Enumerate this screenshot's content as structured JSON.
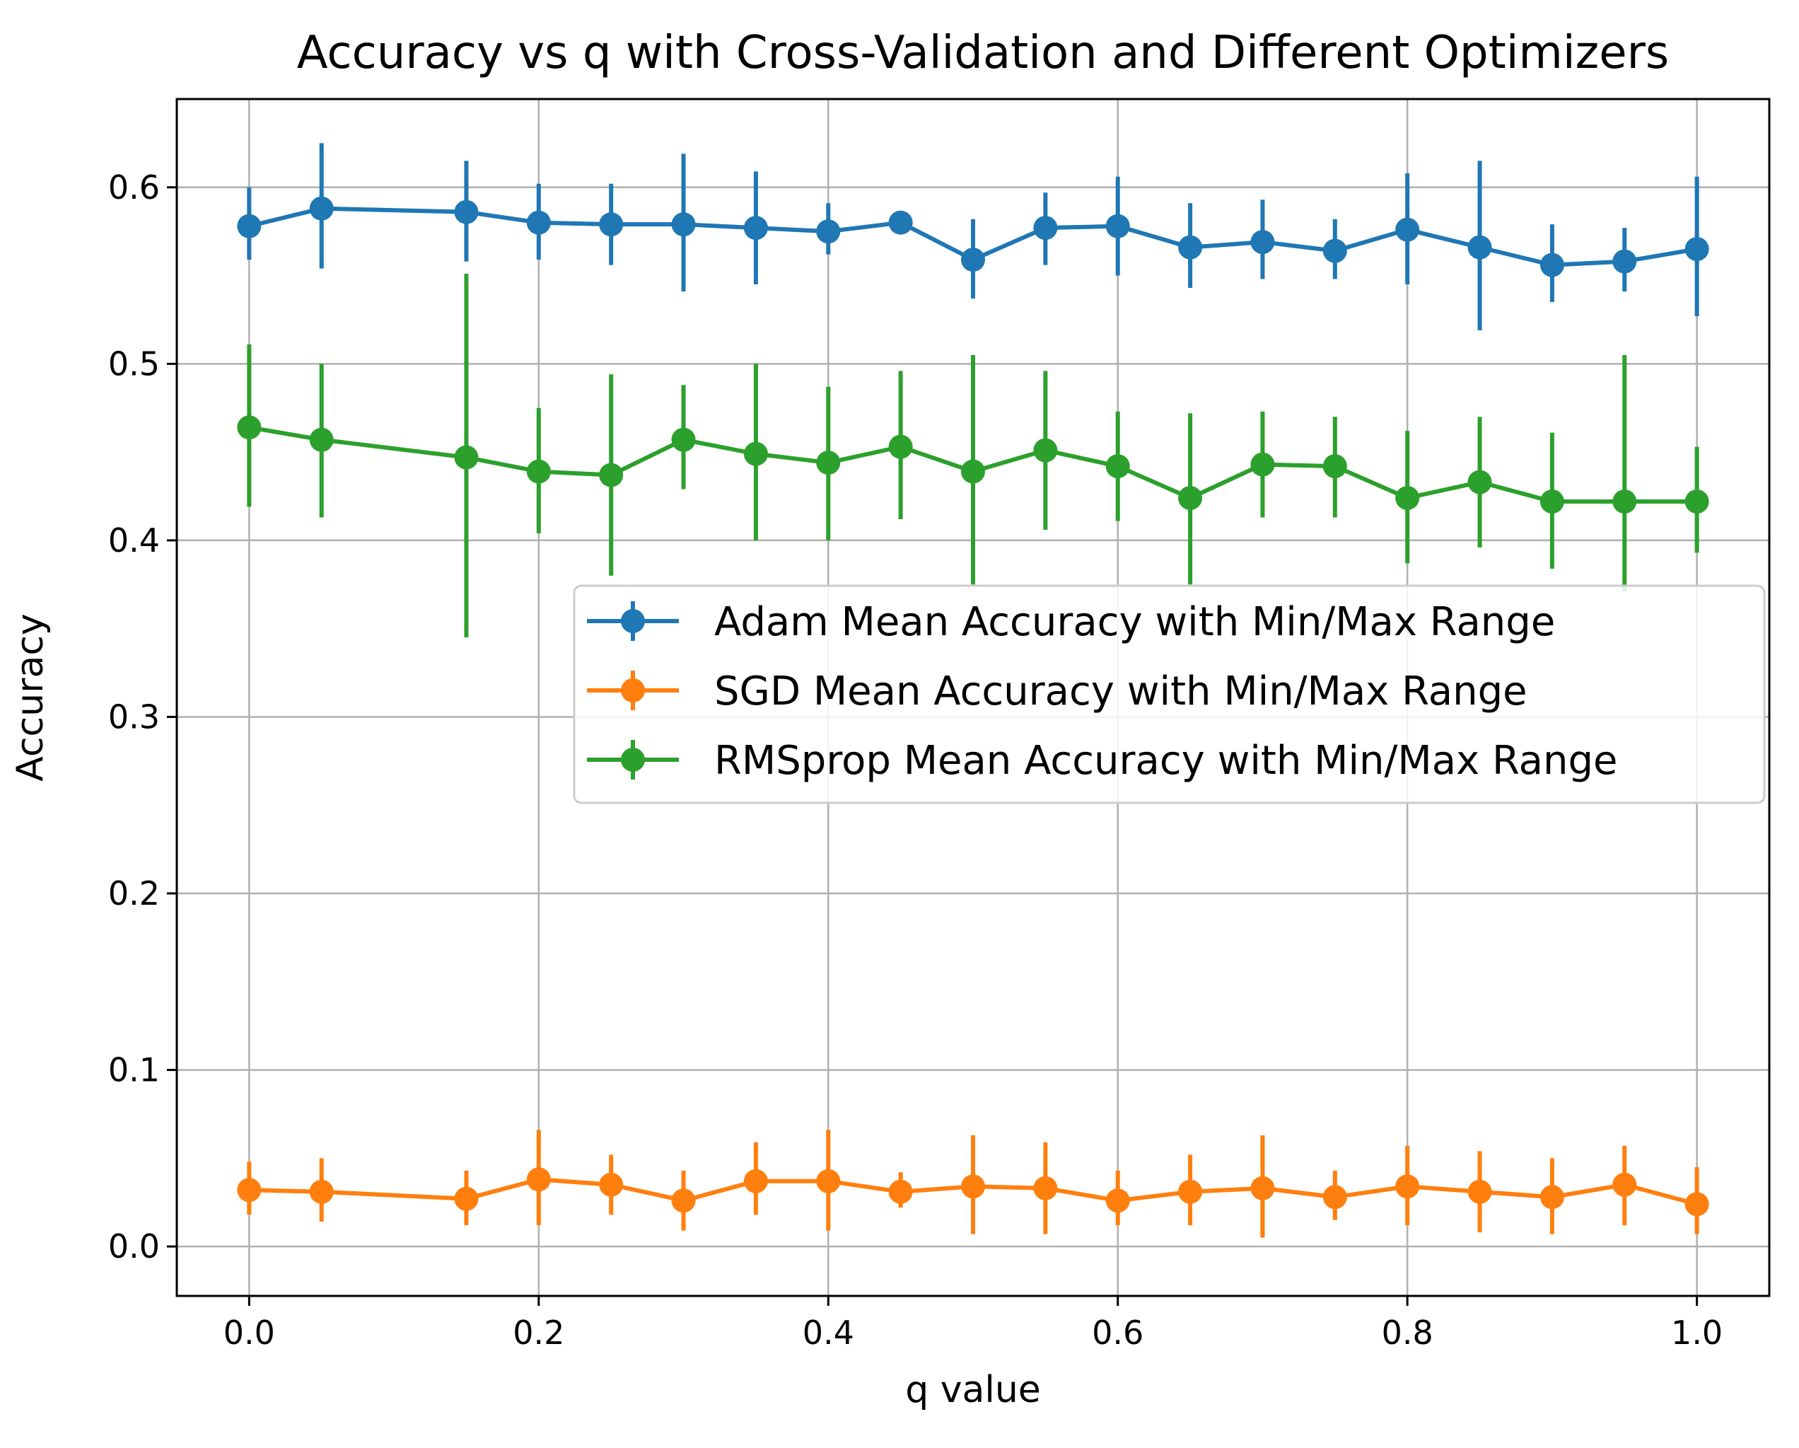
{
  "chart_data": {
    "type": "line",
    "title": "Accuracy vs q with Cross-Validation and Different Optimizers",
    "xlabel": "q value",
    "ylabel": "Accuracy",
    "xlim": [
      -0.05,
      1.05
    ],
    "ylim": [
      -0.028,
      0.65
    ],
    "xticks": [
      0.0,
      0.2,
      0.4,
      0.6,
      0.8,
      1.0
    ],
    "xtick_labels": [
      "0.0",
      "0.2",
      "0.4",
      "0.6",
      "0.8",
      "1.0"
    ],
    "yticks": [
      0.0,
      0.1,
      0.2,
      0.3,
      0.4,
      0.5,
      0.6
    ],
    "ytick_labels": [
      "0.0",
      "0.1",
      "0.2",
      "0.3",
      "0.4",
      "0.5",
      "0.6"
    ],
    "grid": true,
    "legend_position": "center-right",
    "x": [
      0.0,
      0.05,
      0.15,
      0.2,
      0.25,
      0.3,
      0.35,
      0.4,
      0.45,
      0.5,
      0.55,
      0.6,
      0.65,
      0.7,
      0.75,
      0.8,
      0.85,
      0.9,
      0.95,
      1.0
    ],
    "series": [
      {
        "name": "Adam Mean Accuracy with Min/Max Range",
        "color": "#1f77b4",
        "values": [
          0.578,
          0.588,
          0.586,
          0.58,
          0.579,
          0.579,
          0.577,
          0.575,
          0.58,
          0.559,
          0.577,
          0.578,
          0.566,
          0.569,
          0.564,
          0.576,
          0.566,
          0.556,
          0.558,
          0.565
        ],
        "min": [
          0.559,
          0.554,
          0.558,
          0.559,
          0.556,
          0.541,
          0.545,
          0.562,
          0.575,
          0.537,
          0.556,
          0.55,
          0.543,
          0.548,
          0.548,
          0.545,
          0.519,
          0.535,
          0.541,
          0.527
        ],
        "max": [
          0.6,
          0.625,
          0.615,
          0.602,
          0.602,
          0.619,
          0.609,
          0.591,
          0.586,
          0.582,
          0.597,
          0.606,
          0.591,
          0.593,
          0.582,
          0.608,
          0.615,
          0.579,
          0.577,
          0.606
        ]
      },
      {
        "name": "SGD Mean Accuracy with Min/Max Range",
        "color": "#ff7f0e",
        "values": [
          0.032,
          0.031,
          0.027,
          0.038,
          0.035,
          0.026,
          0.037,
          0.037,
          0.031,
          0.034,
          0.033,
          0.026,
          0.031,
          0.033,
          0.028,
          0.034,
          0.031,
          0.028,
          0.035,
          0.024
        ],
        "min": [
          0.018,
          0.014,
          0.012,
          0.012,
          0.018,
          0.009,
          0.018,
          0.009,
          0.022,
          0.007,
          0.007,
          0.012,
          0.012,
          0.005,
          0.015,
          0.012,
          0.008,
          0.007,
          0.012,
          0.007
        ],
        "max": [
          0.048,
          0.05,
          0.043,
          0.066,
          0.052,
          0.043,
          0.059,
          0.066,
          0.042,
          0.063,
          0.059,
          0.043,
          0.052,
          0.063,
          0.043,
          0.057,
          0.054,
          0.05,
          0.057,
          0.045
        ]
      },
      {
        "name": "RMSprop Mean Accuracy with Min/Max Range",
        "color": "#2ca02c",
        "values": [
          0.464,
          0.457,
          0.447,
          0.439,
          0.437,
          0.457,
          0.449,
          0.444,
          0.453,
          0.439,
          0.451,
          0.442,
          0.424,
          0.443,
          0.442,
          0.424,
          0.433,
          0.422,
          0.422,
          0.422
        ],
        "min": [
          0.419,
          0.413,
          0.345,
          0.404,
          0.38,
          0.429,
          0.4,
          0.4,
          0.412,
          0.375,
          0.406,
          0.411,
          0.375,
          0.413,
          0.413,
          0.387,
          0.396,
          0.384,
          0.371,
          0.393
        ],
        "max": [
          0.511,
          0.5,
          0.551,
          0.475,
          0.494,
          0.488,
          0.5,
          0.487,
          0.496,
          0.505,
          0.496,
          0.473,
          0.472,
          0.473,
          0.47,
          0.462,
          0.47,
          0.461,
          0.505,
          0.453
        ]
      }
    ]
  }
}
